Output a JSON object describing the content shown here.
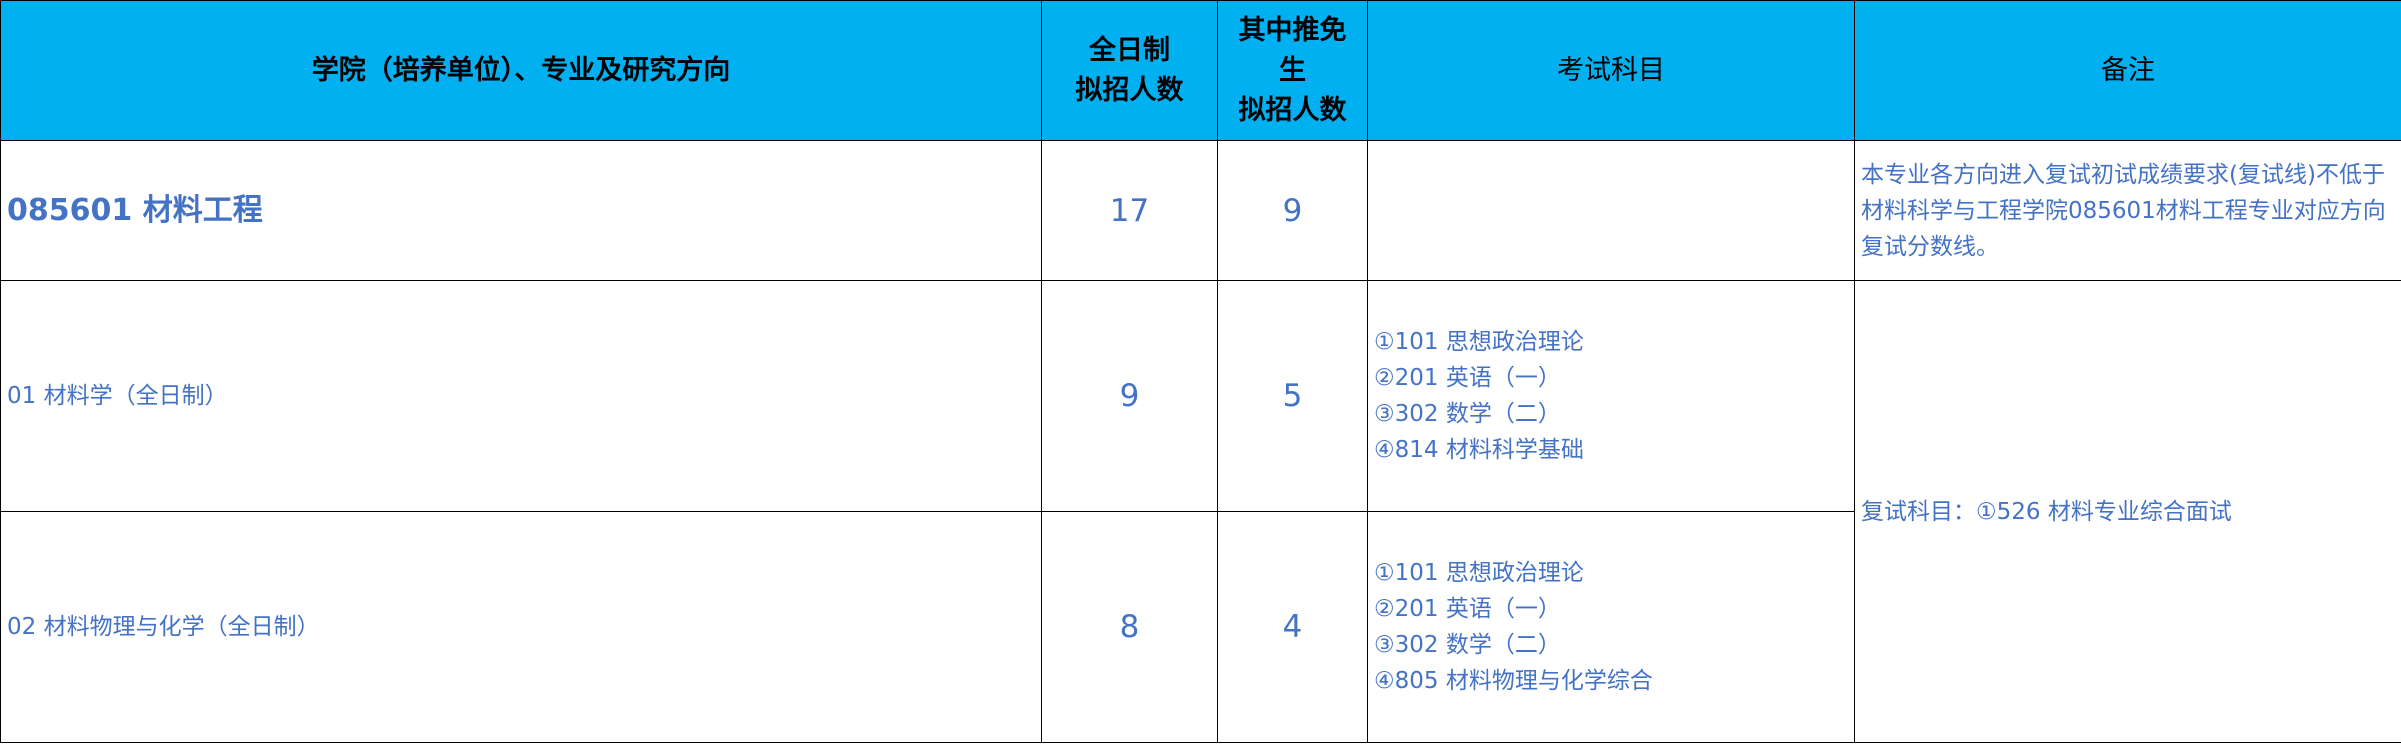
{
  "header": {
    "col_program": "学院（培养单位）、专业及研究方向",
    "col_fulltime": [
      "全日制",
      "拟招人数"
    ],
    "col_exempt": [
      "其中推免",
      "生",
      "拟招人数"
    ],
    "col_exam": "考试科目",
    "col_notes": "备注"
  },
  "major": {
    "name": "085601 材料工程",
    "fulltime": "17",
    "exempt": "9",
    "notes": "本专业各方向进入复试初试成绩要求(复试线)不低于材料科学与工程学院085601材料工程专业对应方向复试分数线。"
  },
  "directions": [
    {
      "name": "01 材料学（全日制）",
      "fulltime": "9",
      "exempt": "5",
      "exams": [
        "①101 思想政治理论",
        "②201 英语（一）",
        "③302 数学（二）",
        "④814 材料科学基础"
      ]
    },
    {
      "name": "02 材料物理与化学（全日制）",
      "fulltime": "8",
      "exempt": "4",
      "exams": [
        "①101 思想政治理论",
        "②201 英语（一）",
        "③302 数学（二）",
        "④805 材料物理与化学综合"
      ]
    }
  ],
  "retest_note": "复试科目：①526 材料专业综合面试",
  "colors": {
    "header_bg": "#00B0F0",
    "text": "#4472C4"
  }
}
